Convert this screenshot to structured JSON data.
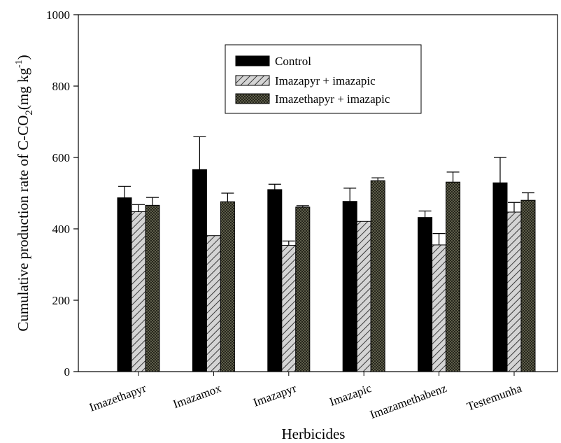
{
  "chart_data": {
    "type": "bar",
    "title": "",
    "xlabel": "Herbicides",
    "ylabel": {
      "main": "Cumulative production rate of C-CO",
      "sub": "2",
      "unit_open": "(mg kg",
      "sup": "-1",
      "unit_close": ")"
    },
    "ylim": [
      0,
      1000
    ],
    "yticks": [
      0,
      200,
      400,
      600,
      800,
      1000
    ],
    "categories": [
      "Imazethapyr",
      "Imazamox",
      "Imazapyr",
      "Imazapic",
      "Imazamethabenz",
      "Testemunha"
    ],
    "series": [
      {
        "name": "Control",
        "pattern": "solid",
        "values": [
          487,
          566,
          510,
          477,
          432,
          529
        ],
        "errors": [
          32,
          92,
          15,
          37,
          18,
          71
        ]
      },
      {
        "name": "Imazapyr + imazapic",
        "pattern": "diagonal-hatch",
        "values": [
          448,
          381,
          354,
          421,
          355,
          447
        ],
        "errors": [
          20,
          0,
          12,
          0,
          32,
          27
        ]
      },
      {
        "name": "Imazethapyr + imazapic",
        "pattern": "crosshatch",
        "values": [
          466,
          476,
          461,
          535,
          531,
          480
        ],
        "errors": [
          22,
          24,
          4,
          8,
          28,
          21
        ]
      }
    ],
    "legend_position": "top-center",
    "grid": false,
    "colors": {
      "control": "#000000",
      "hatch_fill": "#d4d4d4",
      "hatch_line": "#3a3a3a",
      "cross_fill": "#6e6e58",
      "cross_line": "#1a1a12"
    }
  }
}
